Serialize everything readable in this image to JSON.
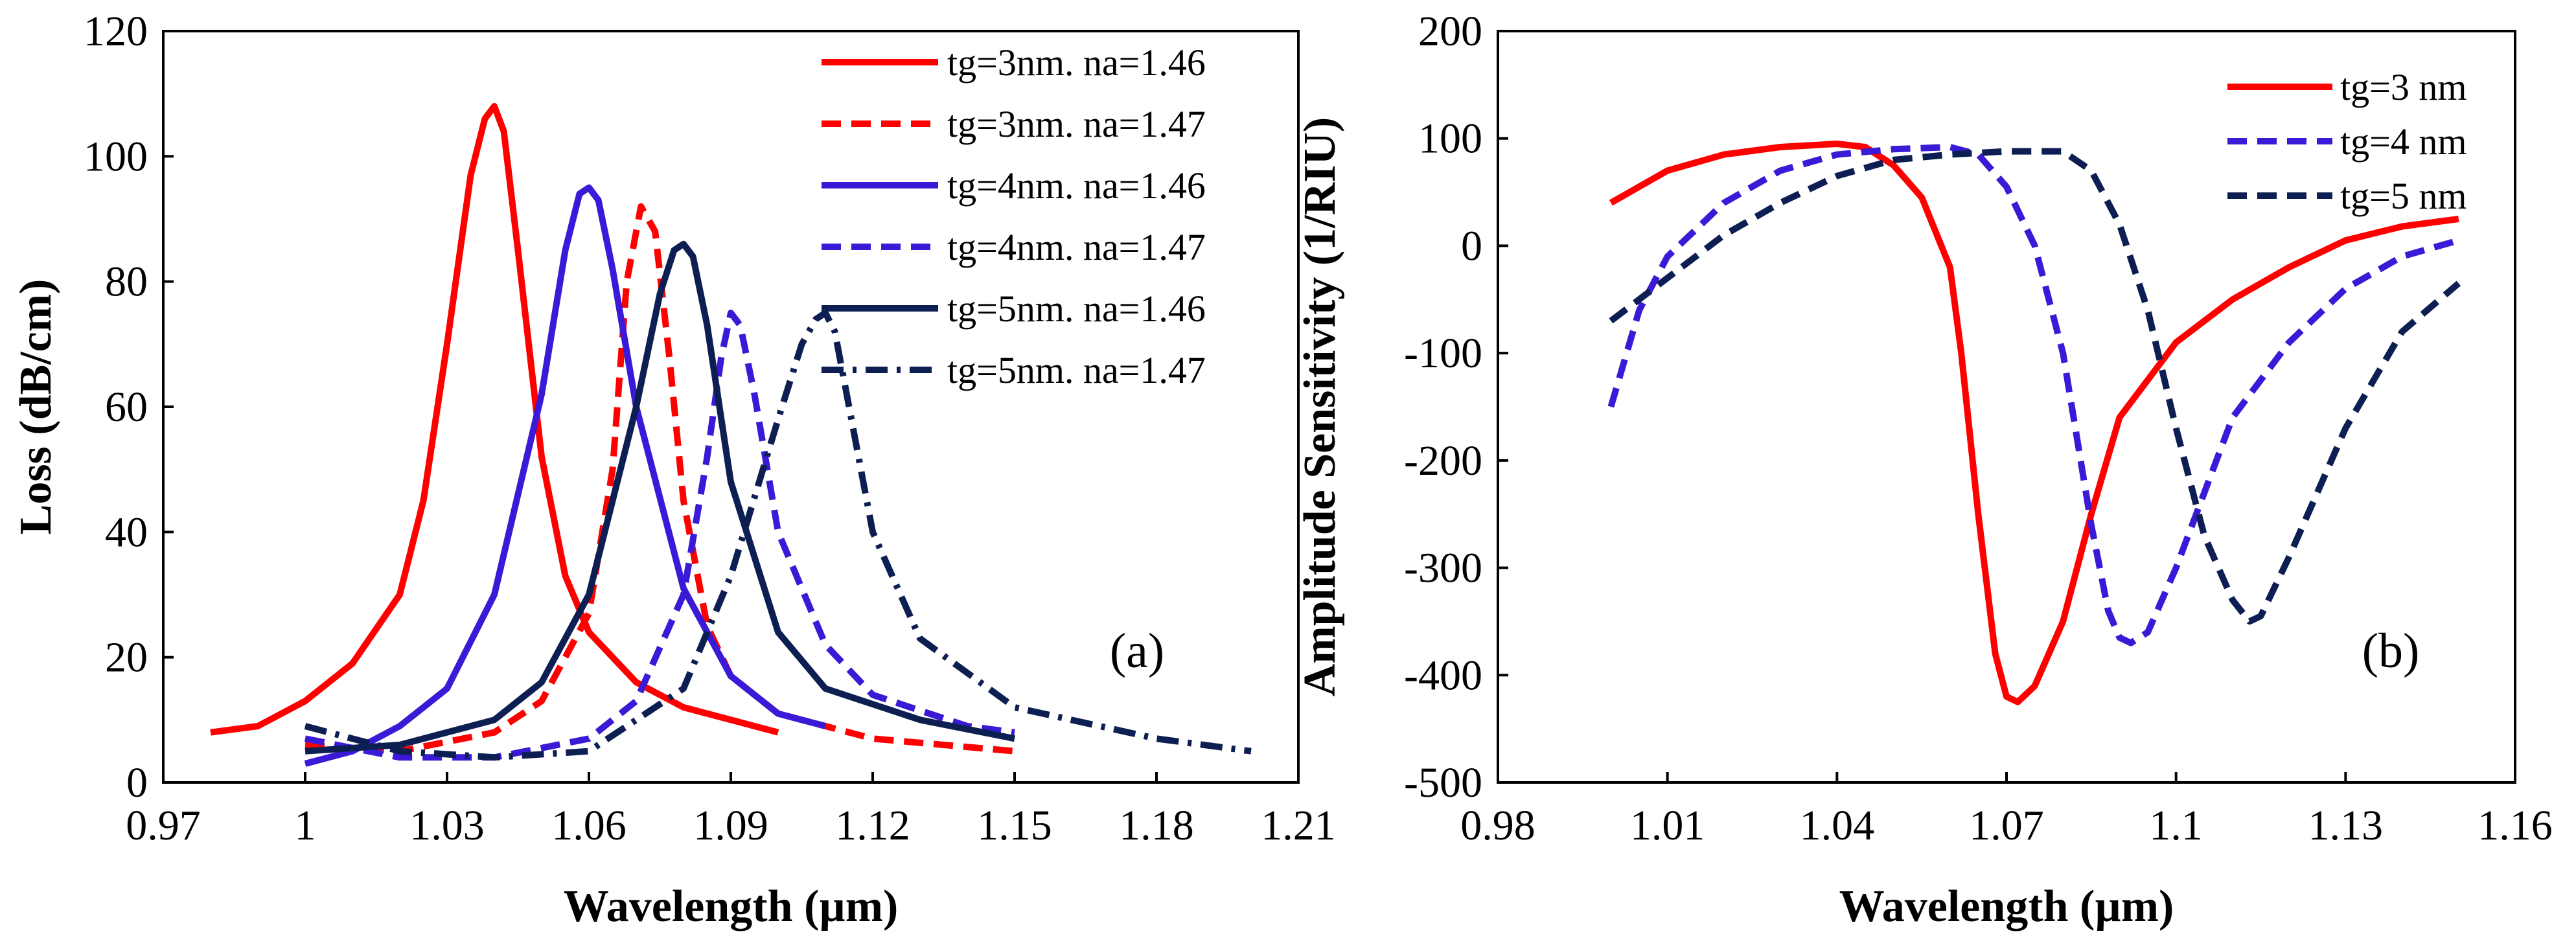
{
  "chart_data": [
    {
      "type": "line",
      "panel_label": "(a)",
      "xlabel": "Wavelength (µm)",
      "ylabel": "Loss (dB/cm)",
      "xlim": [
        0.97,
        1.21
      ],
      "ylim": [
        0,
        120
      ],
      "xticks": [
        0.97,
        1.0,
        1.03,
        1.06,
        1.09,
        1.12,
        1.15,
        1.18,
        1.21
      ],
      "xtick_labels": [
        "0.97",
        "1",
        "1.03",
        "1.06",
        "1.09",
        "1.12",
        "1.15",
        "1.18",
        "1.21"
      ],
      "yticks": [
        0,
        20,
        40,
        60,
        80,
        100,
        120
      ],
      "ytick_labels": [
        "0",
        "20",
        "40",
        "60",
        "80",
        "100",
        "120"
      ],
      "grid": false,
      "legend_position": "top-right",
      "series": [
        {
          "name": "tg=3nm. na=1.46",
          "color": "#ff0000",
          "dash": "solid",
          "x": [
            0.98,
            0.99,
            1.0,
            1.01,
            1.02,
            1.025,
            1.03,
            1.035,
            1.038,
            1.04,
            1.042,
            1.045,
            1.05,
            1.055,
            1.06,
            1.07,
            1.08,
            1.09,
            1.1
          ],
          "y": [
            8,
            9,
            13,
            19,
            30,
            45,
            70,
            97,
            106,
            108,
            104,
            85,
            52,
            33,
            24,
            16,
            12,
            10,
            8
          ]
        },
        {
          "name": "tg=3nm. na=1.47",
          "color": "#ff0000",
          "dash": "dash",
          "x": [
            1.0,
            1.02,
            1.04,
            1.05,
            1.06,
            1.065,
            1.068,
            1.071,
            1.074,
            1.077,
            1.08,
            1.085,
            1.09,
            1.1,
            1.12,
            1.15
          ],
          "y": [
            6,
            5,
            8,
            13,
            27,
            50,
            80,
            92,
            88,
            68,
            45,
            25,
            17,
            11,
            7,
            5
          ]
        },
        {
          "name": "tg=4nm. na=1.46",
          "color": "#3a1ad6",
          "dash": "solid",
          "x": [
            1.0,
            1.01,
            1.02,
            1.03,
            1.04,
            1.05,
            1.055,
            1.058,
            1.06,
            1.062,
            1.065,
            1.07,
            1.08,
            1.09,
            1.1,
            1.11
          ],
          "y": [
            3,
            5,
            9,
            15,
            30,
            62,
            85,
            94,
            95,
            93,
            82,
            60,
            31,
            17,
            11,
            9
          ]
        },
        {
          "name": "tg=4nm. na=1.47",
          "color": "#3a1ad6",
          "dash": "dash",
          "x": [
            1.0,
            1.02,
            1.04,
            1.06,
            1.07,
            1.08,
            1.085,
            1.088,
            1.09,
            1.092,
            1.095,
            1.1,
            1.11,
            1.12,
            1.14,
            1.15
          ],
          "y": [
            7,
            4,
            4,
            7,
            13,
            30,
            52,
            68,
            75,
            73,
            62,
            40,
            22,
            14,
            9,
            8
          ]
        },
        {
          "name": "tg=5nm. na=1.46",
          "color": "#0d1f52",
          "dash": "solid",
          "x": [
            1.0,
            1.02,
            1.04,
            1.05,
            1.06,
            1.07,
            1.075,
            1.078,
            1.08,
            1.082,
            1.085,
            1.09,
            1.1,
            1.11,
            1.13,
            1.15
          ],
          "y": [
            5,
            6,
            10,
            16,
            30,
            60,
            78,
            85,
            86,
            84,
            73,
            48,
            24,
            15,
            10,
            7
          ]
        },
        {
          "name": "tg=5nm. na=1.47",
          "color": "#0d1f52",
          "dash": "dashdot",
          "x": [
            1.0,
            1.02,
            1.04,
            1.06,
            1.08,
            1.09,
            1.1,
            1.105,
            1.108,
            1.11,
            1.112,
            1.115,
            1.12,
            1.13,
            1.15,
            1.18,
            1.2
          ],
          "y": [
            9,
            5,
            4,
            5,
            15,
            33,
            58,
            70,
            74,
            75,
            72,
            60,
            40,
            23,
            12,
            7,
            5
          ]
        }
      ]
    },
    {
      "type": "line",
      "panel_label": "(b)",
      "xlabel": "Wavelength (µm)",
      "ylabel": "Amplitude Sensitivity (1/RIU)",
      "xlim": [
        0.98,
        1.16
      ],
      "ylim": [
        -500,
        200
      ],
      "xticks": [
        0.98,
        1.01,
        1.04,
        1.07,
        1.1,
        1.13,
        1.16
      ],
      "xtick_labels": [
        "0.98",
        "1.01",
        "1.04",
        "1.07",
        "1.1",
        "1.13",
        "1.16"
      ],
      "yticks": [
        -500,
        -400,
        -300,
        -200,
        -100,
        0,
        100,
        200
      ],
      "ytick_labels": [
        "-500",
        "-400",
        "-300",
        "-200",
        "-100",
        "0",
        "100",
        "200"
      ],
      "grid": false,
      "legend_position": "top-right",
      "series": [
        {
          "name": "tg=3 nm",
          "color": "#ff0000",
          "dash": "solid",
          "x": [
            1.0,
            1.01,
            1.02,
            1.03,
            1.04,
            1.045,
            1.05,
            1.055,
            1.06,
            1.062,
            1.065,
            1.068,
            1.07,
            1.072,
            1.075,
            1.08,
            1.085,
            1.09,
            1.1,
            1.11,
            1.12,
            1.13,
            1.14,
            1.15
          ],
          "y": [
            40,
            70,
            85,
            92,
            95,
            92,
            75,
            45,
            -20,
            -100,
            -250,
            -380,
            -420,
            -425,
            -410,
            -350,
            -250,
            -160,
            -90,
            -50,
            -20,
            5,
            18,
            25
          ]
        },
        {
          "name": "tg=4 nm",
          "color": "#3a1ad6",
          "dash": "dash",
          "x": [
            1.0,
            1.005,
            1.01,
            1.02,
            1.03,
            1.04,
            1.05,
            1.06,
            1.065,
            1.07,
            1.075,
            1.08,
            1.085,
            1.088,
            1.09,
            1.092,
            1.095,
            1.1,
            1.105,
            1.11,
            1.12,
            1.13,
            1.14,
            1.15
          ],
          "y": [
            -150,
            -60,
            -10,
            40,
            70,
            85,
            90,
            92,
            85,
            55,
            0,
            -100,
            -260,
            -340,
            -365,
            -370,
            -360,
            -300,
            -230,
            -160,
            -90,
            -40,
            -10,
            5
          ]
        },
        {
          "name": "tg=5 nm",
          "color": "#0d1f52",
          "dash": "dash",
          "x": [
            1.0,
            1.01,
            1.02,
            1.03,
            1.04,
            1.05,
            1.06,
            1.07,
            1.08,
            1.085,
            1.09,
            1.095,
            1.1,
            1.105,
            1.11,
            1.113,
            1.115,
            1.12,
            1.13,
            1.14,
            1.15
          ],
          "y": [
            -70,
            -30,
            10,
            40,
            65,
            80,
            85,
            88,
            88,
            70,
            20,
            -60,
            -170,
            -270,
            -330,
            -350,
            -345,
            -290,
            -170,
            -80,
            -35
          ]
        }
      ]
    }
  ]
}
